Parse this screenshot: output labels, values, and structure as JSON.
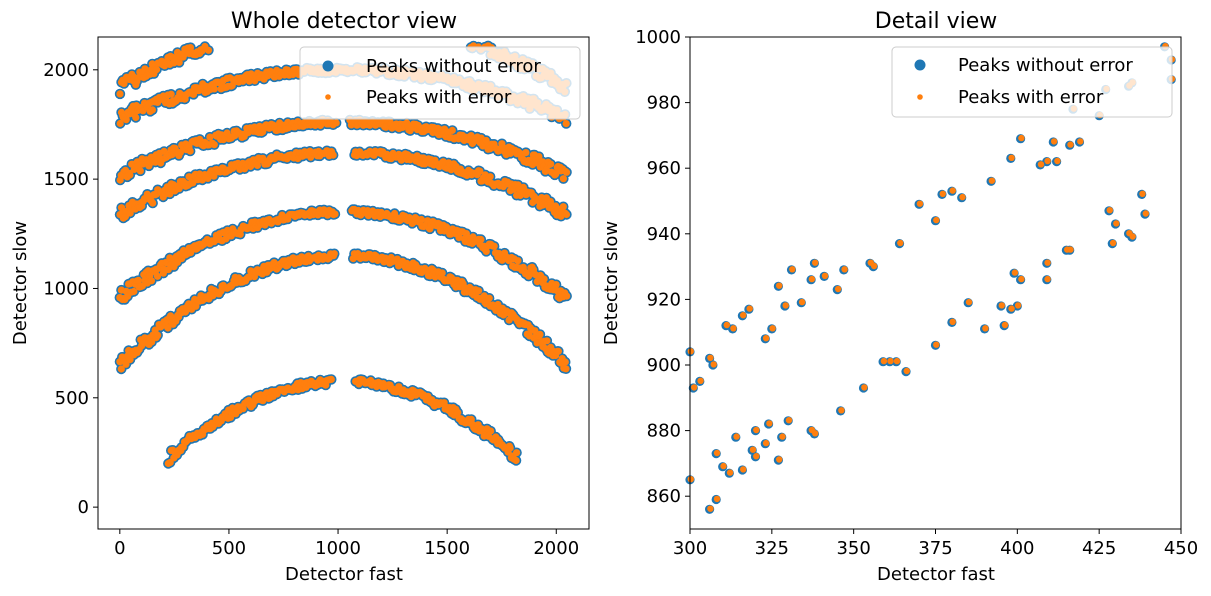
{
  "colors": {
    "without": "#1f77b4",
    "with": "#ff7f0e"
  },
  "chart_data": [
    {
      "type": "scatter",
      "title": "Whole detector view",
      "xlabel": "Detector fast",
      "ylabel": "Detector slow",
      "xlim": [
        -100,
        2150
      ],
      "ylim": [
        -100,
        2150
      ],
      "xticks": [
        0,
        500,
        1000,
        1500,
        2000
      ],
      "yticks": [
        0,
        500,
        1000,
        1500,
        2000
      ],
      "legend": {
        "position": "top-right",
        "entries": [
          "Peaks without error",
          "Peaks with error"
        ]
      },
      "rings": [
        {
          "peak": 2220,
          "halfwidth": 1240,
          "ends": 1920,
          "gap": null
        },
        {
          "peak": 2000,
          "halfwidth": 1280,
          "ends": 1780,
          "gap": null
        },
        {
          "peak": 1760,
          "halfwidth": 1320,
          "ends": 1520,
          "gap": 60
        },
        {
          "peak": 1620,
          "halfwidth": 1360,
          "ends": 1340,
          "gap": 90
        },
        {
          "peak": 1350,
          "halfwidth": 1420,
          "ends": 960,
          "gap": 70
        },
        {
          "peak": 1150,
          "halfwidth": 1500,
          "ends": 650,
          "gap": 80
        },
        {
          "peak": 575,
          "halfwidth": 800,
          "ends": 0,
          "gap": 110
        }
      ]
    },
    {
      "type": "scatter",
      "title": "Detail view",
      "xlabel": "Detector fast",
      "ylabel": "Detector slow",
      "xlim": [
        300,
        450
      ],
      "ylim": [
        850,
        1000
      ],
      "xticks": [
        300,
        325,
        350,
        375,
        400,
        425,
        450
      ],
      "yticks": [
        860,
        880,
        900,
        920,
        940,
        960,
        980,
        1000
      ],
      "legend": {
        "position": "top-right",
        "entries": [
          "Peaks without error",
          "Peaks with error"
        ]
      },
      "series": [
        {
          "name": "Peaks without error",
          "x": [
            300,
            301,
            303,
            306,
            307,
            311,
            313,
            316,
            318,
            323,
            325,
            327,
            329,
            331,
            334,
            337,
            338,
            341,
            345,
            347,
            355,
            356,
            364,
            375,
            377,
            380,
            383,
            370,
            392,
            398,
            401,
            407,
            409,
            411,
            412,
            416,
            417,
            419,
            425,
            427,
            434,
            435,
            445,
            447,
            447,
            300,
            306,
            308,
            308,
            310,
            312,
            314,
            316,
            319,
            320,
            320,
            323,
            324,
            327,
            328,
            330,
            337,
            338,
            346,
            353,
            359,
            361,
            363,
            366,
            375,
            380,
            385,
            390,
            395,
            396,
            398,
            399,
            400,
            401,
            409,
            409,
            415,
            416,
            428,
            429,
            430,
            434,
            435,
            438,
            439
          ],
          "y": [
            904,
            893,
            895,
            902,
            900,
            912,
            911,
            915,
            917,
            908,
            911,
            924,
            918,
            929,
            919,
            926,
            931,
            927,
            923,
            929,
            931,
            930,
            937,
            944,
            952,
            953,
            951,
            949,
            956,
            963,
            969,
            961,
            962,
            968,
            962,
            967,
            978,
            968,
            976,
            984,
            985,
            986,
            997,
            987,
            993,
            865,
            856,
            859,
            873,
            869,
            867,
            878,
            868,
            874,
            880,
            872,
            876,
            882,
            871,
            878,
            883,
            880,
            879,
            886,
            893,
            901,
            901,
            901,
            898,
            906,
            913,
            919,
            911,
            918,
            912,
            917,
            928,
            918,
            926,
            926,
            931,
            935,
            935,
            947,
            937,
            943,
            940,
            939,
            952,
            946
          ]
        },
        {
          "name": "Peaks with error",
          "x": [
            300,
            301,
            303,
            306,
            307,
            311,
            313,
            316,
            318,
            323,
            325,
            327,
            329,
            331,
            334,
            337,
            338,
            341,
            345,
            347,
            355,
            356,
            364,
            375,
            377,
            380,
            383,
            370,
            392,
            398,
            401,
            407,
            409,
            411,
            412,
            416,
            417,
            419,
            425,
            427,
            434,
            435,
            445,
            447,
            447,
            300,
            306,
            308,
            308,
            310,
            312,
            314,
            316,
            319,
            320,
            320,
            323,
            324,
            327,
            328,
            330,
            337,
            338,
            346,
            353,
            359,
            361,
            363,
            366,
            375,
            380,
            385,
            390,
            395,
            396,
            398,
            399,
            400,
            401,
            409,
            409,
            415,
            416,
            428,
            429,
            430,
            434,
            435,
            438,
            439
          ],
          "y": [
            904,
            893,
            895,
            902,
            900,
            912,
            911,
            915,
            917,
            908,
            911,
            924,
            918,
            929,
            919,
            926,
            931,
            927,
            923,
            929,
            931,
            930,
            937,
            944,
            952,
            953,
            951,
            949,
            956,
            963,
            969,
            961,
            962,
            968,
            962,
            967,
            978,
            968,
            976,
            984,
            985,
            986,
            997,
            987,
            993,
            865,
            856,
            859,
            873,
            869,
            867,
            878,
            868,
            874,
            880,
            872,
            876,
            882,
            871,
            878,
            883,
            880,
            879,
            886,
            893,
            901,
            901,
            901,
            898,
            906,
            913,
            919,
            911,
            918,
            912,
            917,
            928,
            918,
            926,
            926,
            931,
            935,
            935,
            947,
            937,
            943,
            940,
            939,
            952,
            946
          ]
        }
      ]
    }
  ]
}
